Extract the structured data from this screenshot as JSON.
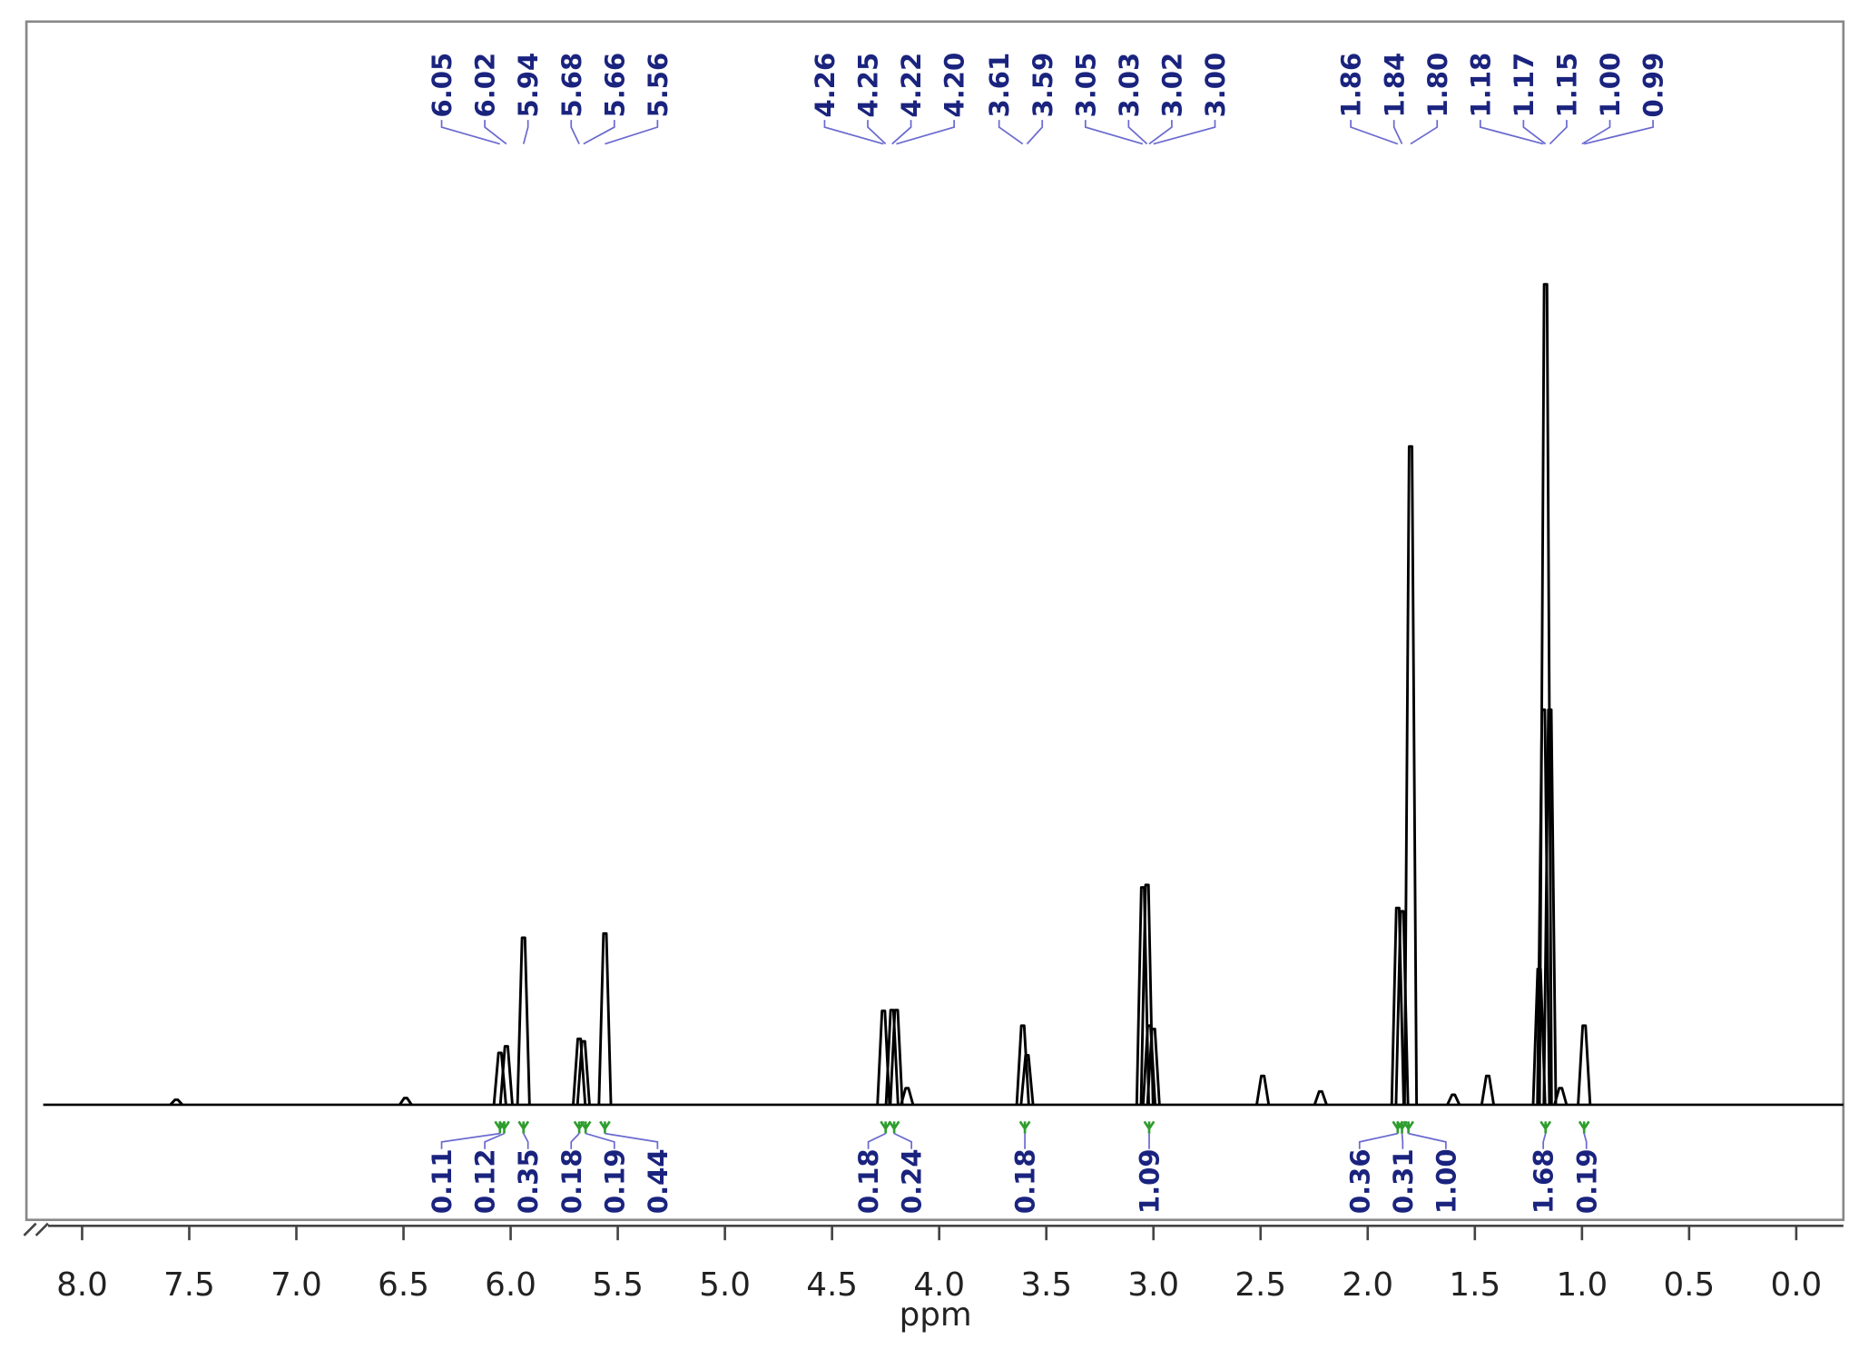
{
  "chart_data": {
    "type": "nmr",
    "x_label": "ppm",
    "xlim": [
      8.26,
      -0.22
    ],
    "ylim": [
      0,
      100
    ],
    "xticks": [
      {
        "value": 8,
        "label": "8.0"
      },
      7.5,
      {
        "value": 7,
        "label": "7.0"
      },
      6.5,
      {
        "value": 6,
        "label": "6.0"
      },
      5.5,
      {
        "value": 5,
        "label": "5.0"
      },
      4.5,
      {
        "value": 4,
        "label": "4.0"
      },
      3.5,
      {
        "value": 3,
        "label": "3.0"
      },
      2.5,
      {
        "value": 2,
        "label": "2.0"
      },
      1.5,
      {
        "value": 1,
        "label": "1.0"
      },
      0.5,
      {
        "value": 0,
        "label": "0.0"
      }
    ],
    "color": "#000000",
    "peaks": {
      "x": [
        7.56,
        6.49,
        6.05,
        6.02,
        5.94,
        5.68,
        5.66,
        5.56,
        4.26,
        4.22,
        4.2,
        4.15,
        3.61,
        3.59,
        3.05,
        3.03,
        3.02,
        3.0,
        2.49,
        2.22,
        1.86,
        1.84,
        1.8,
        1.6,
        1.44,
        1.2,
        1.18,
        1.17,
        1.15,
        1.1,
        0.99
      ],
      "values": [
        0.6,
        0.8,
        6.3,
        7.1,
        20.3,
        8.0,
        7.7,
        20.8,
        11.4,
        11.5,
        11.5,
        2.0,
        9.6,
        6.0,
        26.4,
        26.7,
        9.6,
        9.2,
        3.5,
        1.6,
        23.9,
        23.5,
        80.0,
        1.2,
        3.5,
        16.5,
        48.0,
        99.7,
        48.0,
        2.0,
        9.6
      ]
    },
    "peak_labels": [
      6.05,
      6.02,
      5.94,
      5.68,
      5.66,
      5.56,
      4.26,
      4.25,
      4.22,
      {
        "value": 4.2,
        "label": "4.20"
      },
      3.61,
      3.59,
      3.05,
      3.03,
      3.02,
      {
        "value": 3,
        "label": "3.00"
      },
      1.86,
      1.84,
      {
        "value": 1.8,
        "label": "1.80"
      },
      1.18,
      1.17,
      1.15,
      {
        "value": 1,
        "label": "1.00"
      },
      0.99
    ],
    "peak_label_color": "#6a6ad0",
    "integrals": {
      "x": [
        6.05,
        6.03,
        5.94,
        5.68,
        5.65,
        5.56,
        4.25,
        4.21,
        3.6,
        3.02,
        1.86,
        1.84,
        1.81,
        1.17,
        0.99
      ],
      "values": [
        0.11,
        0.12,
        0.35,
        0.18,
        0.19,
        0.44,
        0.18,
        0.24,
        0.18,
        1.09,
        0.36,
        0.31,
        1,
        1.68,
        0.19
      ],
      "value_labels": [
        "0.11",
        "0.12",
        "0.35",
        "0.18",
        "0.19",
        "0.44",
        "0.18",
        "0.24",
        "0.18",
        "1.09",
        "0.36",
        "0.31",
        "1.00",
        "1.68",
        "0.19"
      ]
    },
    "integral_color": "#2e9d2e"
  }
}
